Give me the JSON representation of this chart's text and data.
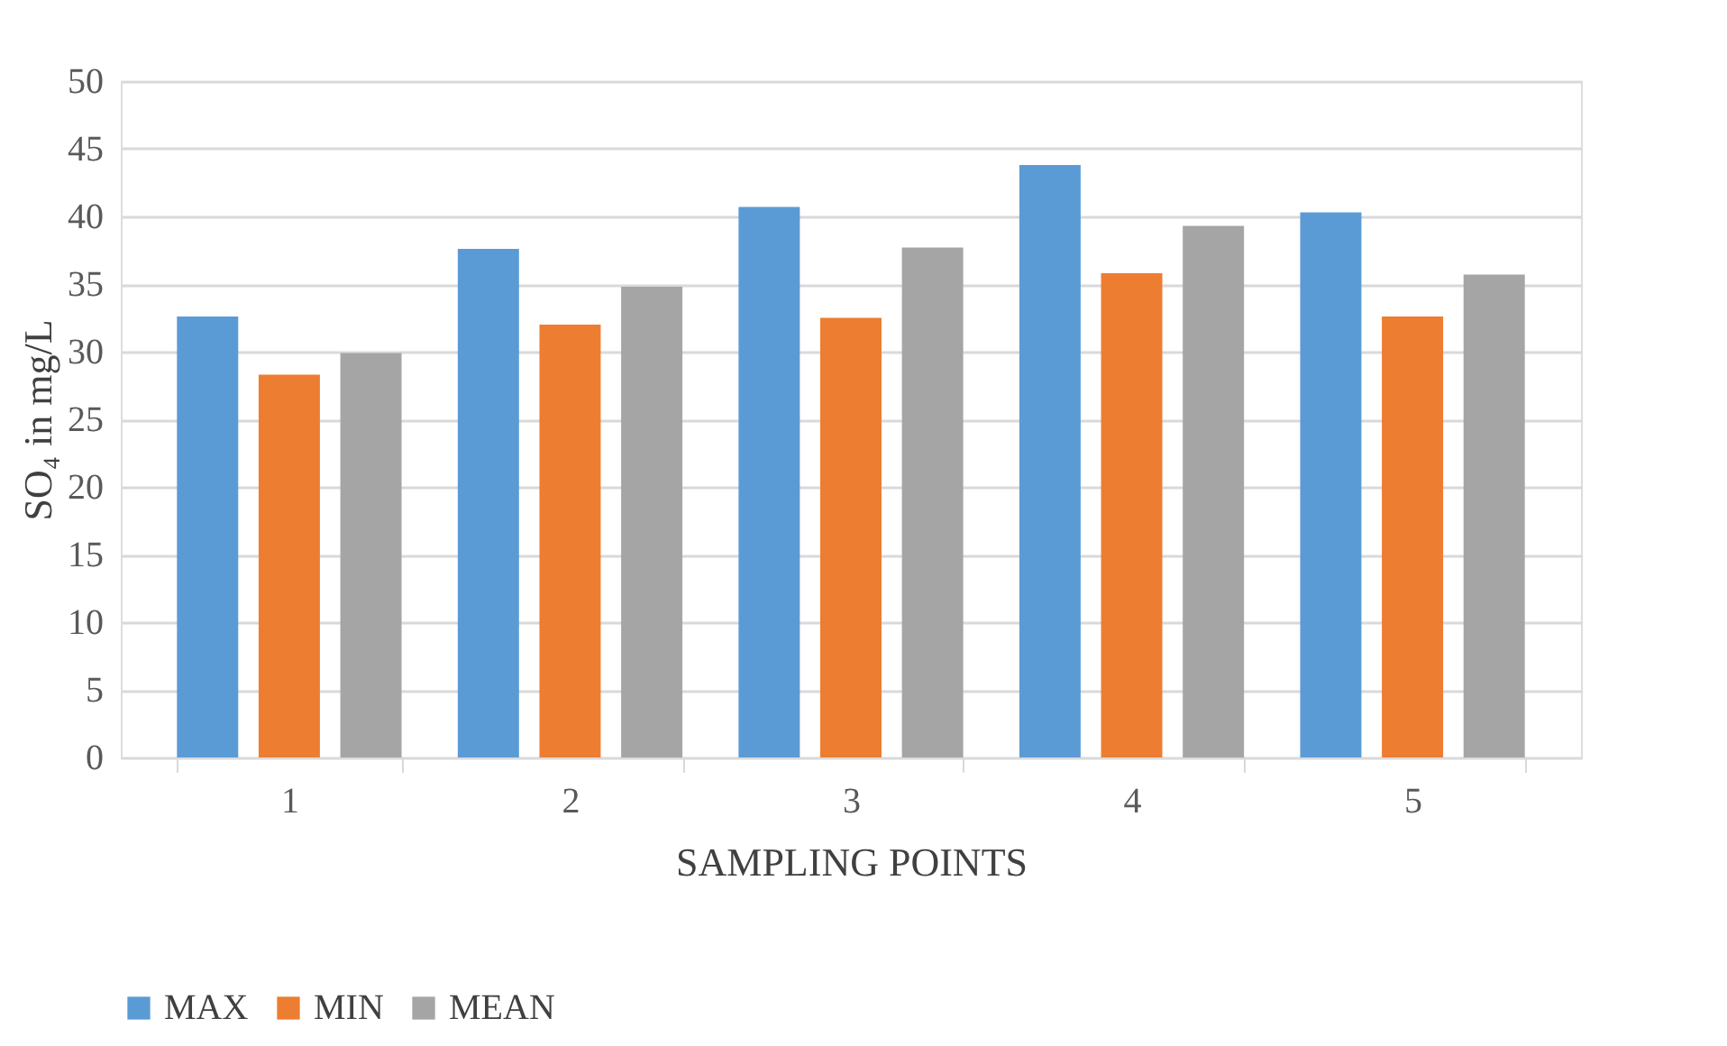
{
  "chart_data": {
    "type": "bar",
    "xlabel": "SAMPLING POINTS",
    "ylabel": "SO₄ in mg/L",
    "categories": [
      "1",
      "2",
      "3",
      "4",
      "5"
    ],
    "series": [
      {
        "name": "MAX",
        "color": "#5b9bd5",
        "values": [
          32.6,
          37.6,
          40.7,
          43.8,
          40.3
        ]
      },
      {
        "name": "MIN",
        "color": "#ed7d31",
        "values": [
          28.3,
          32.0,
          32.5,
          35.8,
          32.6
        ]
      },
      {
        "name": "MEAN",
        "color": "#a5a5a5",
        "values": [
          29.9,
          34.8,
          37.7,
          39.3,
          35.7
        ]
      }
    ],
    "ylim": [
      0,
      50
    ],
    "yticks": [
      0,
      5,
      10,
      15,
      20,
      25,
      30,
      35,
      40,
      45,
      50
    ],
    "grid": "y",
    "legend": "bottom"
  }
}
